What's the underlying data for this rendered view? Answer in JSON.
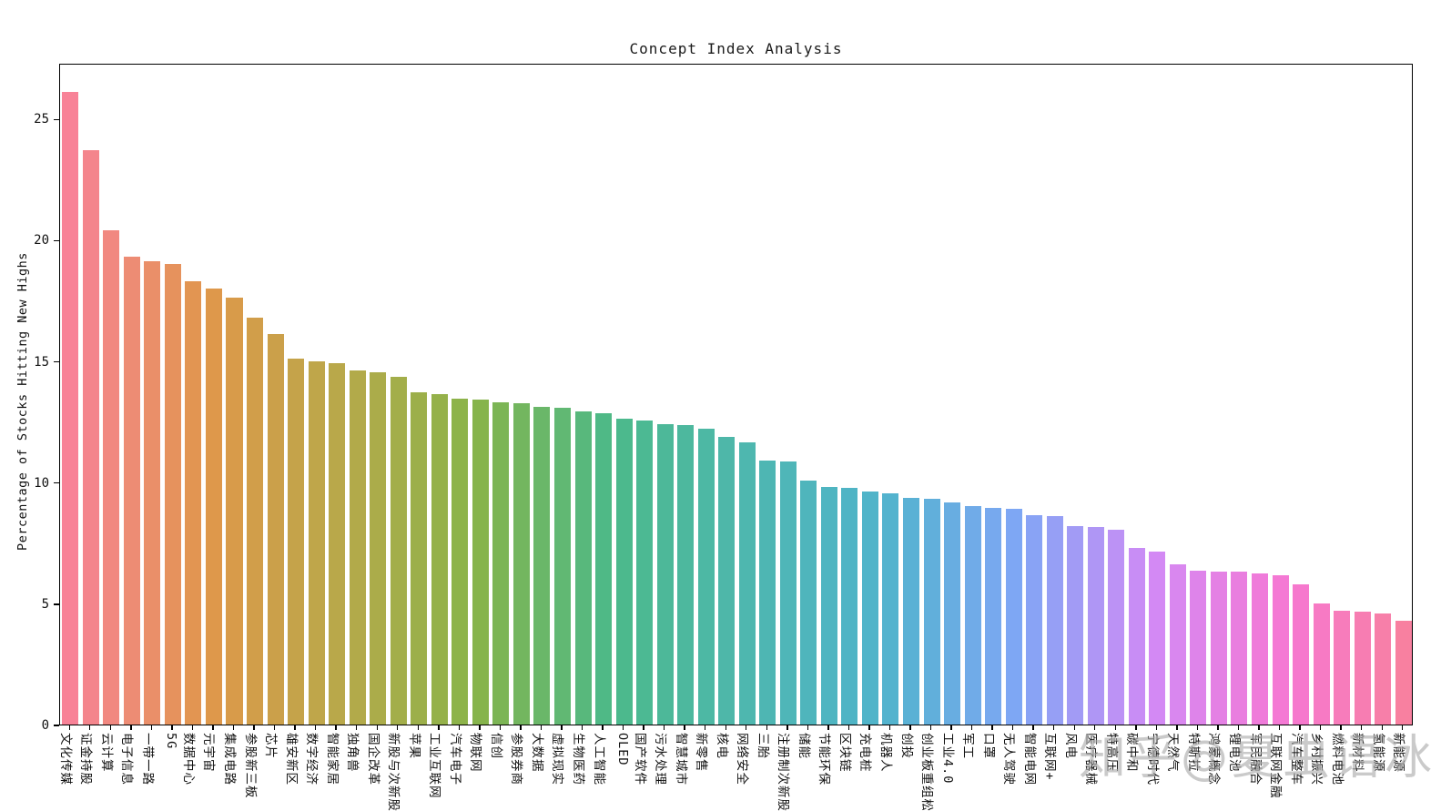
{
  "title": "Concept Index Analysis",
  "watermark": "知乎@夏虫语冰",
  "chart_data": {
    "type": "bar",
    "title": "Concept Index Analysis",
    "xlabel": "",
    "ylabel": "Percentage of Stocks Hitting New Highs",
    "ylim": [
      0,
      27.3
    ],
    "yticks": [
      0,
      5,
      10,
      15,
      20,
      25
    ],
    "grid": false,
    "legend": "none",
    "tick_rotation": 90,
    "palette_anchors": [
      "#f77189",
      "#dc8932",
      "#ae9d31",
      "#77aa31",
      "#33b07a",
      "#36ada4",
      "#38a9c5",
      "#6e9bf4",
      "#cc7af4",
      "#f565cc",
      "#f77189"
    ],
    "categories": [
      "文化传媒",
      "证金持股",
      "云计算",
      "电子信息",
      "一带一路",
      "5G",
      "数据中心",
      "元宇宙",
      "集成电路",
      "参股新三板",
      "芯片",
      "雄安新区",
      "数字经济",
      "智能家居",
      "独角兽",
      "国企改革",
      "新股与次新股",
      "苹果",
      "工业互联网",
      "汽车电子",
      "物联网",
      "信创",
      "参股券商",
      "大数据",
      "虚拟现实",
      "生物医药",
      "人工智能",
      "OLED",
      "国产软件",
      "污水处理",
      "智慧城市",
      "新零售",
      "核电",
      "网络安全",
      "三胎",
      "注册制次新股",
      "储能",
      "节能环保",
      "区块链",
      "充电桩",
      "机器人",
      "创投",
      "创业板重组松绑",
      "工业4.0",
      "军工",
      "口罩",
      "无人驾驶",
      "智能电网",
      "互联网+",
      "风电",
      "医疗器械",
      "特高压",
      "碳中和",
      "宁德时代",
      "天然气",
      "特斯拉",
      "鸿蒙概念",
      "锂电池",
      "军民融合",
      "互联网金融",
      "汽车整车",
      "乡村振兴",
      "燃料电池",
      "新材料",
      "氢能源",
      "新能源"
    ],
    "values": [
      26.1,
      23.7,
      20.4,
      19.3,
      19.1,
      19.0,
      18.3,
      18.0,
      17.6,
      16.8,
      16.1,
      15.1,
      15.0,
      14.9,
      14.6,
      14.55,
      14.35,
      13.7,
      13.65,
      13.45,
      13.4,
      13.3,
      13.25,
      13.1,
      13.05,
      12.9,
      12.85,
      12.6,
      12.55,
      12.4,
      12.35,
      12.2,
      11.85,
      11.65,
      10.9,
      10.85,
      10.05,
      9.8,
      9.75,
      9.6,
      9.55,
      9.35,
      9.3,
      9.15,
      9.0,
      8.95,
      8.9,
      8.65,
      8.6,
      8.2,
      8.15,
      8.05,
      7.3,
      7.15,
      6.6,
      6.35,
      6.3,
      6.3,
      6.25,
      6.15,
      5.8,
      5.0,
      4.7,
      4.65,
      4.6,
      4.3
    ]
  }
}
